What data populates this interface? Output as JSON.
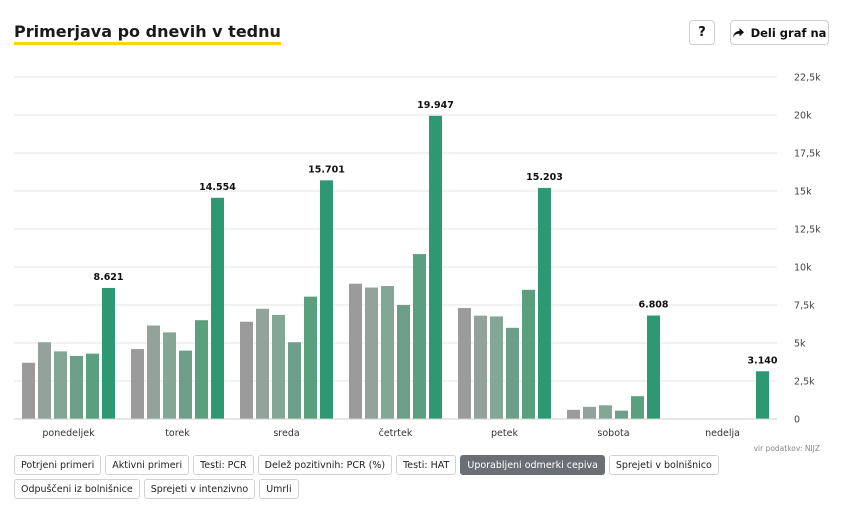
{
  "header": {
    "title": "Primerjava po dnevih v tednu",
    "help_label": "?",
    "share_label": "Deli graf na"
  },
  "source": "vir podatkov: NIJZ",
  "buttons": [
    {
      "label": "Potrjeni primeri",
      "active": false
    },
    {
      "label": "Aktivni primeri",
      "active": false
    },
    {
      "label": "Testi: PCR",
      "active": false
    },
    {
      "label": "Delež pozitivnih: PCR (%)",
      "active": false
    },
    {
      "label": "Testi: HAT",
      "active": false
    },
    {
      "label": "Uporabljeni odmerki cepiva",
      "active": true
    },
    {
      "label": "Sprejeti v bolnišnico",
      "active": false
    },
    {
      "label": "Odpuščeni iz bolnišnice",
      "active": false
    },
    {
      "label": "Sprejeti v intenzivno",
      "active": false
    },
    {
      "label": "Umrli",
      "active": false
    }
  ],
  "chart_data": {
    "type": "bar",
    "categories": [
      "ponedeljek",
      "torek",
      "sreda",
      "četrtek",
      "petek",
      "sobota",
      "nedelja"
    ],
    "series": [
      {
        "color": "#9b9b9b",
        "values": [
          3700,
          4600,
          6400,
          8900,
          7300,
          600,
          0
        ]
      },
      {
        "color": "#93a39b",
        "values": [
          5050,
          6150,
          7250,
          8650,
          6800,
          800,
          0
        ]
      },
      {
        "color": "#84a697",
        "values": [
          4450,
          5700,
          6850,
          8750,
          6750,
          900,
          0
        ]
      },
      {
        "color": "#6c9e89",
        "values": [
          4150,
          4500,
          5050,
          7500,
          6000,
          550,
          0
        ]
      },
      {
        "color": "#5aa07f",
        "values": [
          4300,
          6500,
          8050,
          10850,
          8500,
          1500,
          0
        ]
      },
      {
        "color": "#2e9873",
        "values": [
          8621,
          14554,
          15701,
          19947,
          15203,
          6808,
          3140
        ]
      }
    ],
    "value_labels": [
      "8.621",
      "14.554",
      "15.701",
      "19.947",
      "15.203",
      "6.808",
      "3.140"
    ],
    "yticks": [
      {
        "value": 0,
        "label": "0"
      },
      {
        "value": 2500,
        "label": "2,5k"
      },
      {
        "value": 5000,
        "label": "5k"
      },
      {
        "value": 7500,
        "label": "7,5k"
      },
      {
        "value": 10000,
        "label": "10k"
      },
      {
        "value": 12500,
        "label": "12,5k"
      },
      {
        "value": 15000,
        "label": "15k"
      },
      {
        "value": 17500,
        "label": "17,5k"
      },
      {
        "value": 20000,
        "label": "20k"
      },
      {
        "value": 22500,
        "label": "22,5k"
      }
    ],
    "ylim": [
      0,
      22500
    ],
    "grid": true,
    "y_axis_side": "right"
  }
}
